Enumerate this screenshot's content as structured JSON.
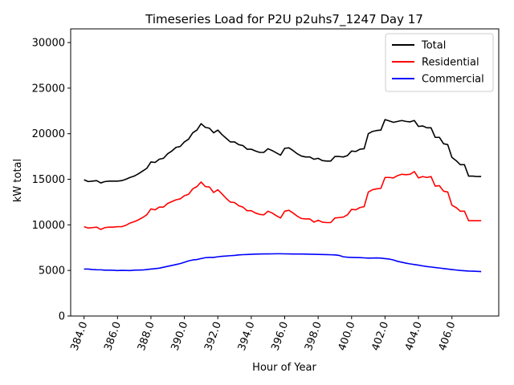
{
  "chart_data": {
    "type": "line",
    "title": "Timeseries Load for P2U p2uhs7_1247  Day 17",
    "xlabel": "Hour of Year",
    "ylabel": "kW total",
    "xlim": [
      383.2,
      408.8
    ],
    "ylim": [
      0,
      31500
    ],
    "x_ticks": [
      384,
      386,
      388,
      390,
      392,
      394,
      396,
      398,
      400,
      402,
      404,
      406
    ],
    "x_tick_labels": [
      "384.0",
      "386.0",
      "388.0",
      "390.0",
      "392.0",
      "394.0",
      "396.0",
      "398.0",
      "400.0",
      "402.0",
      "404.0",
      "406.0"
    ],
    "y_ticks": [
      0,
      5000,
      10000,
      15000,
      20000,
      25000,
      30000
    ],
    "y_tick_labels": [
      "0",
      "5000",
      "10000",
      "15000",
      "20000",
      "25000",
      "30000"
    ],
    "legend_position": "top-right",
    "x": [
      384.0,
      384.25,
      384.5,
      384.75,
      385.0,
      385.25,
      385.5,
      385.75,
      386.0,
      386.25,
      386.5,
      386.75,
      387.0,
      387.25,
      387.5,
      387.75,
      388.0,
      388.25,
      388.5,
      388.75,
      389.0,
      389.25,
      389.5,
      389.75,
      390.0,
      390.25,
      390.5,
      390.75,
      391.0,
      391.25,
      391.5,
      391.75,
      392.0,
      392.25,
      392.5,
      392.75,
      393.0,
      393.25,
      393.5,
      393.75,
      394.0,
      394.25,
      394.5,
      394.75,
      395.0,
      395.25,
      395.5,
      395.75,
      396.0,
      396.25,
      396.5,
      396.75,
      397.0,
      397.25,
      397.5,
      397.75,
      398.0,
      398.25,
      398.5,
      398.75,
      399.0,
      399.25,
      399.5,
      399.75,
      400.0,
      400.25,
      400.5,
      400.75,
      401.0,
      401.25,
      401.5,
      401.75,
      402.0,
      402.25,
      402.5,
      402.75,
      403.0,
      403.25,
      403.5,
      403.75,
      404.0,
      404.25,
      404.5,
      404.75,
      405.0,
      405.25,
      405.5,
      405.75,
      406.0,
      406.25,
      406.5,
      406.75,
      407.0,
      407.25,
      407.5,
      407.75
    ],
    "series": [
      {
        "name": "Total",
        "color": "#000000",
        "values": [
          14950,
          14750,
          14800,
          14850,
          14600,
          14750,
          14800,
          14800,
          14800,
          14850,
          15000,
          15200,
          15350,
          15600,
          15900,
          16200,
          16900,
          16850,
          17200,
          17300,
          17800,
          18100,
          18500,
          18600,
          19100,
          19400,
          20100,
          20400,
          21100,
          20700,
          20600,
          20100,
          20400,
          19900,
          19500,
          19100,
          19100,
          18800,
          18700,
          18300,
          18300,
          18100,
          17950,
          17950,
          18350,
          18150,
          17900,
          17650,
          18400,
          18450,
          18150,
          17800,
          17550,
          17450,
          17450,
          17200,
          17300,
          17050,
          17000,
          17000,
          17500,
          17500,
          17450,
          17600,
          18100,
          18050,
          18300,
          18350,
          20000,
          20250,
          20350,
          20400,
          21550,
          21400,
          21250,
          21350,
          21450,
          21350,
          21300,
          21450,
          20800,
          20850,
          20650,
          20650,
          19600,
          19600,
          18900,
          18800,
          17400,
          17050,
          16600,
          16600,
          15350,
          15350,
          15300,
          15300
        ]
      },
      {
        "name": "Residential",
        "color": "#ff0000",
        "values": [
          9800,
          9650,
          9700,
          9750,
          9500,
          9700,
          9750,
          9750,
          9800,
          9800,
          9950,
          10200,
          10350,
          10550,
          10800,
          11100,
          11750,
          11650,
          11950,
          11950,
          12350,
          12550,
          12750,
          12850,
          13200,
          13350,
          13950,
          14200,
          14700,
          14200,
          14150,
          13550,
          13850,
          13400,
          12900,
          12500,
          12450,
          12100,
          11950,
          11550,
          11550,
          11300,
          11150,
          11100,
          11500,
          11300,
          11000,
          10750,
          11500,
          11600,
          11300,
          10950,
          10700,
          10650,
          10650,
          10300,
          10500,
          10300,
          10250,
          10250,
          10750,
          10800,
          10850,
          11100,
          11700,
          11650,
          11900,
          12000,
          13600,
          13850,
          13950,
          14000,
          15200,
          15200,
          15150,
          15400,
          15550,
          15500,
          15550,
          15850,
          15150,
          15300,
          15200,
          15300,
          14250,
          14300,
          13700,
          13600,
          12150,
          11900,
          11500,
          11500,
          10450,
          10450,
          10450,
          10450
        ]
      },
      {
        "name": "Commercial",
        "color": "#0000ff",
        "values": [
          5150,
          5150,
          5100,
          5080,
          5070,
          5030,
          5030,
          5020,
          4990,
          5010,
          5000,
          4990,
          5030,
          5040,
          5050,
          5100,
          5150,
          5200,
          5250,
          5350,
          5450,
          5550,
          5650,
          5750,
          5900,
          6050,
          6150,
          6200,
          6300,
          6400,
          6430,
          6430,
          6500,
          6550,
          6580,
          6620,
          6650,
          6700,
          6730,
          6750,
          6770,
          6790,
          6800,
          6810,
          6810,
          6820,
          6830,
          6830,
          6820,
          6810,
          6800,
          6800,
          6800,
          6790,
          6780,
          6770,
          6760,
          6750,
          6740,
          6720,
          6700,
          6650,
          6500,
          6450,
          6430,
          6420,
          6410,
          6380,
          6350,
          6360,
          6370,
          6350,
          6300,
          6250,
          6150,
          6000,
          5900,
          5800,
          5720,
          5650,
          5580,
          5500,
          5430,
          5380,
          5320,
          5270,
          5210,
          5150,
          5100,
          5050,
          5000,
          4970,
          4930,
          4920,
          4900,
          4880
        ]
      }
    ]
  }
}
